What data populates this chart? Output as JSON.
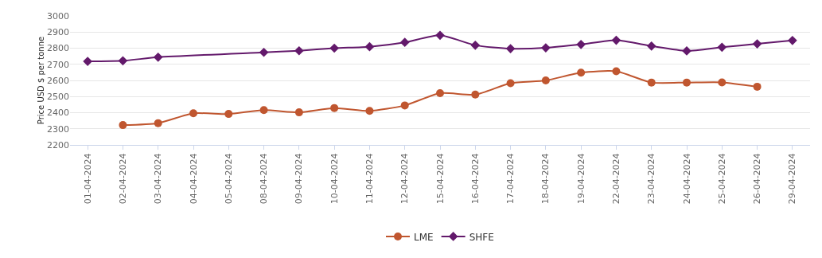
{
  "chart_data": {
    "type": "line",
    "ylabel": "Price USD $ per tonne",
    "categories": [
      "01-04-2024",
      "02-04-2024",
      "03-04-2024",
      "04-04-2024",
      "05-04-2024",
      "08-04-2024",
      "09-04-2024",
      "10-04-2024",
      "11-04-2024",
      "12-04-2024",
      "15-04-2024",
      "16-04-2024",
      "17-04-2024",
      "18-04-2024",
      "19-04-2024",
      "22-04-2024",
      "23-04-2024",
      "24-04-2024",
      "25-04-2024",
      "26-04-2024",
      "29-04-2024"
    ],
    "series": [
      {
        "name": "LME",
        "color": "#c0562f",
        "marker": "circle",
        "values": [
          null,
          2323,
          2335,
          2396,
          2392,
          2416,
          2402,
          2429,
          2411,
          2445,
          2521,
          2512,
          2583,
          2600,
          2648,
          2657,
          2587,
          2587,
          2588,
          2561,
          null
        ]
      },
      {
        "name": "SHFE",
        "color": "#63196b",
        "marker": "diamond",
        "values": [
          2718,
          2722,
          2744,
          null,
          null,
          2774,
          2784,
          2800,
          2809,
          2836,
          2880,
          2818,
          2797,
          2802,
          2823,
          2849,
          2813,
          2783,
          2806,
          2827,
          2848
        ]
      }
    ],
    "ylim": [
      2200,
      3000
    ],
    "yticks": [
      2200,
      2300,
      2400,
      2500,
      2600,
      2700,
      2800,
      2900,
      3000
    ],
    "grid": "y",
    "legend": "bottom"
  }
}
